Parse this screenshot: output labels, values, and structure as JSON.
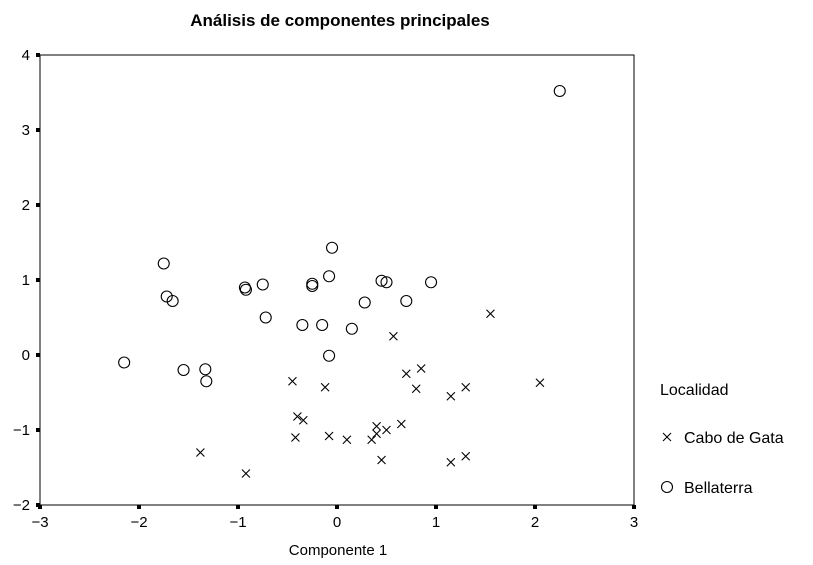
{
  "chart_data": {
    "type": "scatter",
    "title": "Análisis de componentes principales",
    "xlabel": "Componente 1",
    "ylabel": "",
    "xlim": [
      -3,
      3
    ],
    "ylim": [
      -2,
      4
    ],
    "xticks": [
      -3,
      -2,
      -1,
      0,
      1,
      2,
      3
    ],
    "yticks": [
      -2,
      -1,
      0,
      1,
      2,
      3,
      4
    ],
    "xtick_labels": [
      "−3",
      "−2",
      "−1",
      "0",
      "1",
      "2",
      "3"
    ],
    "ytick_labels": [
      "−2",
      "−1",
      "0",
      "1",
      "2",
      "3",
      "4"
    ],
    "grid": false,
    "legend_title": "Localidad",
    "legend_position": "right",
    "series": [
      {
        "name": "Cabo de Gata",
        "marker": "x",
        "points": [
          [
            1.55,
            0.55
          ],
          [
            0.57,
            0.25
          ],
          [
            0.85,
            -0.18
          ],
          [
            0.7,
            -0.25
          ],
          [
            0.8,
            -0.45
          ],
          [
            1.15,
            -0.55
          ],
          [
            1.3,
            -0.43
          ],
          [
            2.05,
            -0.37
          ],
          [
            -0.45,
            -0.35
          ],
          [
            -0.12,
            -0.43
          ],
          [
            -0.4,
            -0.82
          ],
          [
            -0.34,
            -0.87
          ],
          [
            -0.42,
            -1.1
          ],
          [
            -0.08,
            -1.08
          ],
          [
            0.1,
            -1.13
          ],
          [
            0.35,
            -1.13
          ],
          [
            0.4,
            -1.05
          ],
          [
            0.4,
            -0.95
          ],
          [
            0.5,
            -1.0
          ],
          [
            0.65,
            -0.92
          ],
          [
            0.45,
            -1.4
          ],
          [
            1.15,
            -1.43
          ],
          [
            1.3,
            -1.35
          ],
          [
            -1.38,
            -1.3
          ],
          [
            -0.92,
            -1.58
          ]
        ]
      },
      {
        "name": "Bellaterra",
        "marker": "o",
        "points": [
          [
            2.25,
            3.52
          ],
          [
            -0.05,
            1.43
          ],
          [
            -1.75,
            1.22
          ],
          [
            -1.72,
            0.78
          ],
          [
            -1.66,
            0.72
          ],
          [
            -0.93,
            0.9
          ],
          [
            -0.92,
            0.87
          ],
          [
            -0.75,
            0.94
          ],
          [
            -0.25,
            0.95
          ],
          [
            -0.25,
            0.92
          ],
          [
            -0.08,
            1.05
          ],
          [
            0.45,
            0.99
          ],
          [
            0.5,
            0.97
          ],
          [
            0.95,
            0.97
          ],
          [
            0.28,
            0.7
          ],
          [
            0.7,
            0.72
          ],
          [
            -0.72,
            0.5
          ],
          [
            -0.35,
            0.4
          ],
          [
            -0.15,
            0.4
          ],
          [
            0.15,
            0.35
          ],
          [
            -0.08,
            -0.01
          ],
          [
            -2.15,
            -0.1
          ],
          [
            -1.55,
            -0.2
          ],
          [
            -1.33,
            -0.19
          ],
          [
            -1.32,
            -0.35
          ]
        ]
      }
    ]
  }
}
